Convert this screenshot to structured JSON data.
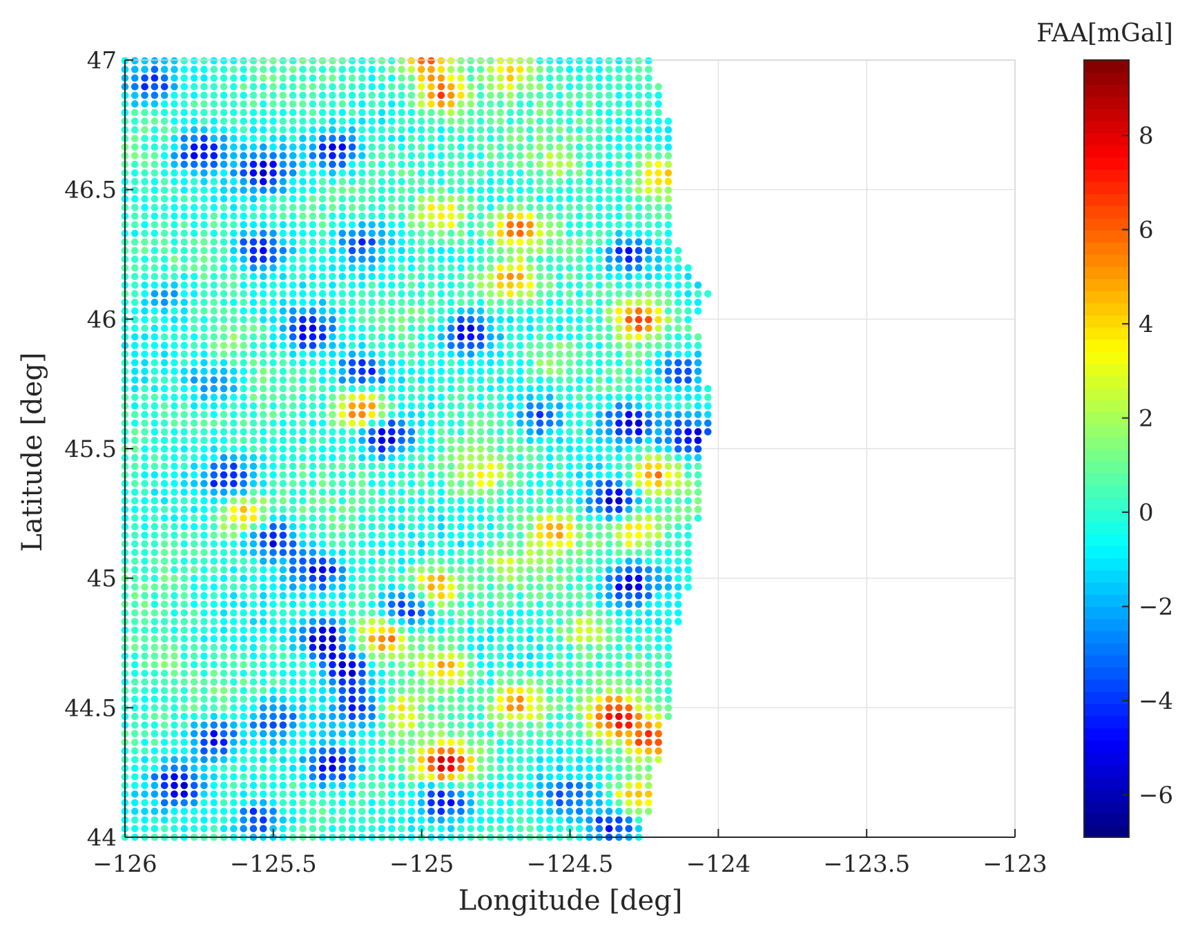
{
  "chart_data": {
    "type": "scatter",
    "xlabel": "Longitude [deg]",
    "ylabel": "Latitude [deg]",
    "xlim": [
      -126,
      -123
    ],
    "ylim": [
      44,
      47
    ],
    "xticks": [
      -126,
      -125.5,
      -125,
      -124.5,
      -124,
      -123.5,
      -123
    ],
    "xtick_labels": [
      "−126",
      "−125.5",
      "−125",
      "−124.5",
      "−124",
      "−123.5",
      "−123"
    ],
    "yticks": [
      44,
      44.5,
      45,
      45.5,
      46,
      46.5,
      47
    ],
    "ytick_labels": [
      "44",
      "44.5",
      "45",
      "45.5",
      "46",
      "46.5",
      "47"
    ],
    "grid": true,
    "grid_spacing_deg": 0.0333,
    "colormap": "jet",
    "colorbar": {
      "title": "FAA[mGal]",
      "range": [
        -6.9,
        9.6
      ],
      "ticks": [
        -6,
        -4,
        -2,
        0,
        2,
        4,
        6,
        8
      ],
      "tick_labels": [
        "−6",
        "−4",
        "−2",
        "0",
        "2",
        "4",
        "6",
        "8"
      ]
    },
    "east_boundary": [
      [
        44.0,
        -124.25
      ],
      [
        44.1,
        -124.23
      ],
      [
        44.2,
        -124.22
      ],
      [
        44.3,
        -124.2
      ],
      [
        44.4,
        -124.18
      ],
      [
        44.5,
        -124.16
      ],
      [
        44.6,
        -124.15
      ],
      [
        44.7,
        -124.15
      ],
      [
        44.8,
        -124.14
      ],
      [
        44.9,
        -124.12
      ],
      [
        45.0,
        -124.09
      ],
      [
        45.1,
        -124.09
      ],
      [
        45.2,
        -124.07
      ],
      [
        45.3,
        -124.06
      ],
      [
        45.4,
        -124.06
      ],
      [
        45.5,
        -124.05
      ],
      [
        45.6,
        -124.02
      ],
      [
        45.7,
        -124.02
      ],
      [
        45.8,
        -124.06
      ],
      [
        45.9,
        -124.06
      ],
      [
        46.0,
        -124.08
      ],
      [
        46.1,
        -124.03
      ],
      [
        46.2,
        -124.1
      ],
      [
        46.3,
        -124.14
      ],
      [
        46.4,
        -124.14
      ],
      [
        46.5,
        -124.14
      ],
      [
        46.6,
        -124.14
      ],
      [
        46.7,
        -124.15
      ],
      [
        46.8,
        -124.17
      ],
      [
        46.9,
        -124.2
      ],
      [
        47.0,
        -124.23
      ]
    ],
    "anomalies": [
      {
        "lon": -125.53,
        "lat": 46.57,
        "faa": -5.0
      },
      {
        "lon": -125.75,
        "lat": 46.65,
        "faa": -4.8
      },
      {
        "lon": -125.3,
        "lat": 46.65,
        "faa": -5.0
      },
      {
        "lon": -125.92,
        "lat": 46.9,
        "faa": -4.2
      },
      {
        "lon": -124.93,
        "lat": 46.87,
        "faa": 6.5
      },
      {
        "lon": -124.98,
        "lat": 47.0,
        "faa": 5.5
      },
      {
        "lon": -124.7,
        "lat": 46.95,
        "faa": 4.0
      },
      {
        "lon": -124.2,
        "lat": 46.55,
        "faa": 5.0
      },
      {
        "lon": -124.68,
        "lat": 46.35,
        "faa": 6.5
      },
      {
        "lon": -124.93,
        "lat": 46.4,
        "faa": 4.5
      },
      {
        "lon": -125.55,
        "lat": 46.27,
        "faa": -5.0
      },
      {
        "lon": -125.2,
        "lat": 46.3,
        "faa": -4.0
      },
      {
        "lon": -124.3,
        "lat": 46.25,
        "faa": -5.0
      },
      {
        "lon": -124.7,
        "lat": 46.15,
        "faa": 5.0
      },
      {
        "lon": -124.27,
        "lat": 46.0,
        "faa": 6.5
      },
      {
        "lon": -125.38,
        "lat": 45.95,
        "faa": -5.5
      },
      {
        "lon": -124.85,
        "lat": 45.95,
        "faa": -5.5
      },
      {
        "lon": -125.2,
        "lat": 45.8,
        "faa": -4.5
      },
      {
        "lon": -125.7,
        "lat": 45.75,
        "faa": -3.5
      },
      {
        "lon": -124.12,
        "lat": 45.8,
        "faa": -4.5
      },
      {
        "lon": -125.2,
        "lat": 45.65,
        "faa": 7.0
      },
      {
        "lon": -125.12,
        "lat": 45.55,
        "faa": -5.5
      },
      {
        "lon": -124.3,
        "lat": 45.6,
        "faa": -5.5
      },
      {
        "lon": -124.1,
        "lat": 45.55,
        "faa": -5.5
      },
      {
        "lon": -124.6,
        "lat": 45.62,
        "faa": -4.0
      },
      {
        "lon": -125.65,
        "lat": 45.38,
        "faa": -4.5
      },
      {
        "lon": -124.22,
        "lat": 45.4,
        "faa": 5.5
      },
      {
        "lon": -124.35,
        "lat": 45.3,
        "faa": -5.5
      },
      {
        "lon": -125.6,
        "lat": 45.25,
        "faa": 4.5
      },
      {
        "lon": -125.5,
        "lat": 45.15,
        "faa": -5.5
      },
      {
        "lon": -124.55,
        "lat": 45.18,
        "faa": 4.5
      },
      {
        "lon": -124.28,
        "lat": 45.18,
        "faa": 4.0
      },
      {
        "lon": -125.35,
        "lat": 45.03,
        "faa": -5.0
      },
      {
        "lon": -125.05,
        "lat": 44.87,
        "faa": -5.5
      },
      {
        "lon": -124.95,
        "lat": 44.97,
        "faa": 5.0
      },
      {
        "lon": -125.33,
        "lat": 44.77,
        "faa": -6.0
      },
      {
        "lon": -125.12,
        "lat": 44.77,
        "faa": 5.5
      },
      {
        "lon": -125.25,
        "lat": 44.65,
        "faa": -5.5
      },
      {
        "lon": -124.3,
        "lat": 44.98,
        "faa": -5.0
      },
      {
        "lon": -124.92,
        "lat": 44.65,
        "faa": 5.0
      },
      {
        "lon": -124.68,
        "lat": 44.52,
        "faa": 5.5
      },
      {
        "lon": -124.35,
        "lat": 44.47,
        "faa": 7.5
      },
      {
        "lon": -124.23,
        "lat": 44.38,
        "faa": 7.0
      },
      {
        "lon": -125.7,
        "lat": 44.38,
        "faa": -5.0
      },
      {
        "lon": -125.5,
        "lat": 44.45,
        "faa": -3.5
      },
      {
        "lon": -125.2,
        "lat": 44.5,
        "faa": -4.0
      },
      {
        "lon": -125.08,
        "lat": 44.48,
        "faa": 4.0
      },
      {
        "lon": -124.92,
        "lat": 44.28,
        "faa": 8.5
      },
      {
        "lon": -125.3,
        "lat": 44.27,
        "faa": -4.5
      },
      {
        "lon": -125.82,
        "lat": 44.2,
        "faa": -5.0
      },
      {
        "lon": -125.55,
        "lat": 44.07,
        "faa": -5.0
      },
      {
        "lon": -124.93,
        "lat": 44.15,
        "faa": -5.5
      },
      {
        "lon": -124.35,
        "lat": 44.05,
        "faa": -5.0
      },
      {
        "lon": -124.5,
        "lat": 44.15,
        "faa": -3.0
      },
      {
        "lon": -124.28,
        "lat": 44.15,
        "faa": 4.5
      },
      {
        "lon": -124.55,
        "lat": 45.85,
        "faa": 2.5
      },
      {
        "lon": -124.8,
        "lat": 45.4,
        "faa": 3.0
      },
      {
        "lon": -124.55,
        "lat": 46.6,
        "faa": 2.0
      },
      {
        "lon": -125.65,
        "lat": 45.95,
        "faa": 1.5
      },
      {
        "lon": -125.85,
        "lat": 46.1,
        "faa": -2.5
      },
      {
        "lon": -125.9,
        "lat": 44.7,
        "faa": 1.5
      },
      {
        "lon": -124.45,
        "lat": 44.8,
        "faa": 2.5
      },
      {
        "lon": -124.7,
        "lat": 45.05,
        "faa": 2.0
      }
    ]
  }
}
